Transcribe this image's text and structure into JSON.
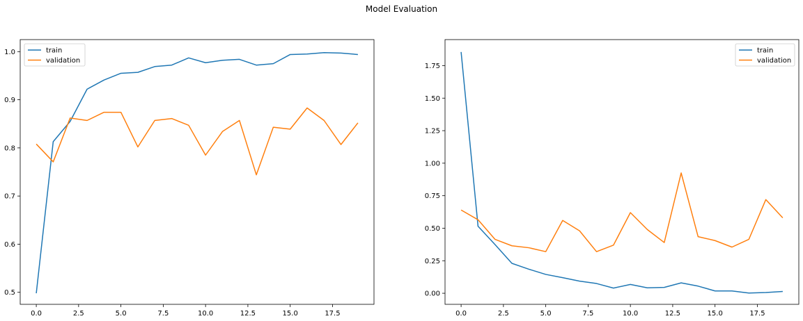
{
  "figure": {
    "suptitle": "Model Evaluation"
  },
  "colors": {
    "train": "#1f77b4",
    "validation": "#ff7f0e"
  },
  "chart_data": [
    {
      "type": "line",
      "title": "",
      "xlabel": "",
      "ylabel": "",
      "x": [
        0,
        1,
        2,
        3,
        4,
        5,
        6,
        7,
        8,
        9,
        10,
        11,
        12,
        13,
        14,
        15,
        16,
        17,
        18,
        19
      ],
      "xlim": [
        -0.95,
        19.95
      ],
      "ylim": [
        0.475,
        1.025
      ],
      "xticks": [
        0.0,
        2.5,
        5.0,
        7.5,
        10.0,
        12.5,
        15.0,
        17.5
      ],
      "xtick_labels": [
        "0.0",
        "2.5",
        "5.0",
        "7.5",
        "10.0",
        "12.5",
        "15.0",
        "17.5"
      ],
      "yticks": [
        0.5,
        0.6,
        0.7,
        0.8,
        0.9,
        1.0
      ],
      "ytick_labels": [
        "0.5",
        "0.6",
        "0.7",
        "0.8",
        "0.9",
        "1.0"
      ],
      "grid": false,
      "legend": "upper left",
      "series": [
        {
          "name": "train",
          "values": [
            0.498,
            0.813,
            0.855,
            0.922,
            0.941,
            0.955,
            0.957,
            0.969,
            0.972,
            0.987,
            0.977,
            0.982,
            0.984,
            0.972,
            0.975,
            0.994,
            0.995,
            0.998,
            0.997,
            0.994
          ]
        },
        {
          "name": "validation",
          "values": [
            0.808,
            0.771,
            0.862,
            0.857,
            0.874,
            0.874,
            0.802,
            0.857,
            0.861,
            0.847,
            0.785,
            0.834,
            0.857,
            0.744,
            0.843,
            0.839,
            0.883,
            0.857,
            0.807,
            0.852
          ]
        }
      ]
    },
    {
      "type": "line",
      "title": "",
      "xlabel": "",
      "ylabel": "",
      "x": [
        0,
        1,
        2,
        3,
        4,
        5,
        6,
        7,
        8,
        9,
        10,
        11,
        12,
        13,
        14,
        15,
        16,
        17,
        18,
        19
      ],
      "xlim": [
        -0.95,
        19.95
      ],
      "ylim": [
        -0.085,
        1.95
      ],
      "xticks": [
        0.0,
        2.5,
        5.0,
        7.5,
        10.0,
        12.5,
        15.0,
        17.5
      ],
      "xtick_labels": [
        "0.0",
        "2.5",
        "5.0",
        "7.5",
        "10.0",
        "12.5",
        "15.0",
        "17.5"
      ],
      "yticks": [
        0.0,
        0.25,
        0.5,
        0.75,
        1.0,
        1.25,
        1.5,
        1.75
      ],
      "ytick_labels": [
        "0.00",
        "0.25",
        "0.50",
        "0.75",
        "1.00",
        "1.25",
        "1.50",
        "1.75"
      ],
      "grid": false,
      "legend": "upper right",
      "series": [
        {
          "name": "train",
          "values": [
            1.855,
            0.515,
            0.375,
            0.23,
            0.185,
            0.145,
            0.12,
            0.093,
            0.075,
            0.04,
            0.068,
            0.042,
            0.045,
            0.08,
            0.055,
            0.018,
            0.018,
            0.002,
            0.006,
            0.014
          ]
        },
        {
          "name": "validation",
          "values": [
            0.64,
            0.565,
            0.415,
            0.365,
            0.35,
            0.32,
            0.56,
            0.48,
            0.32,
            0.37,
            0.62,
            0.49,
            0.39,
            0.925,
            0.435,
            0.405,
            0.355,
            0.415,
            0.72,
            0.58
          ]
        }
      ]
    }
  ]
}
